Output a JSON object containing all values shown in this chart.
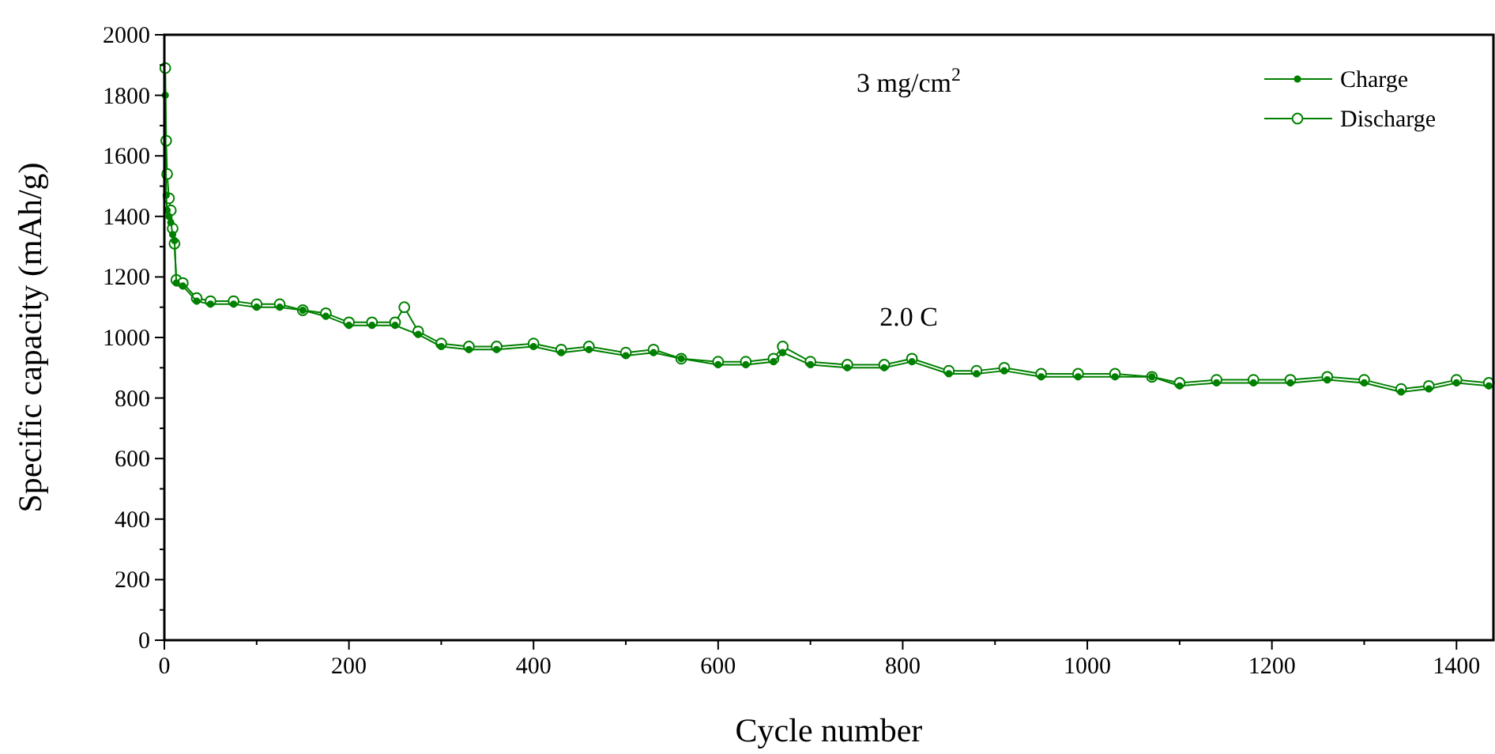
{
  "chart_data": {
    "type": "line",
    "xlabel": "Cycle number",
    "ylabel": "Specific capacity (mAh/g)",
    "annotations": [
      "3 mg/cm$^{2}$",
      "2.0 C"
    ],
    "xlim": [
      0,
      1440
    ],
    "ylim": [
      0,
      2000
    ],
    "xticks": [
      0,
      200,
      400,
      600,
      800,
      1000,
      1200,
      1400
    ],
    "yticks": [
      0,
      200,
      400,
      600,
      800,
      1000,
      1200,
      1400,
      1600,
      1800,
      2000
    ],
    "grid": false,
    "legend": "top right",
    "marker": "circle",
    "line_style": "solid",
    "series": [
      {
        "name": "Charge",
        "color": "#008000",
        "x": [
          1,
          2,
          3,
          5,
          7,
          9,
          11,
          13,
          20,
          35,
          50,
          75,
          100,
          125,
          150,
          175,
          200,
          225,
          250,
          275,
          300,
          330,
          360,
          400,
          430,
          460,
          500,
          530,
          560,
          600,
          630,
          660,
          670,
          700,
          740,
          780,
          810,
          850,
          880,
          910,
          950,
          990,
          1030,
          1070,
          1100,
          1140,
          1180,
          1220,
          1260,
          1300,
          1340,
          1370,
          1400,
          1435
        ],
        "values": [
          1800,
          1470,
          1420,
          1400,
          1380,
          1340,
          1320,
          1180,
          1170,
          1120,
          1110,
          1110,
          1100,
          1100,
          1090,
          1070,
          1040,
          1040,
          1040,
          1010,
          970,
          960,
          960,
          970,
          950,
          960,
          940,
          950,
          930,
          910,
          910,
          920,
          950,
          910,
          900,
          900,
          920,
          880,
          880,
          890,
          870,
          870,
          870,
          870,
          840,
          850,
          850,
          850,
          860,
          850,
          820,
          830,
          850,
          840
        ]
      },
      {
        "name": "Discharge",
        "color": "#008000",
        "x": [
          1,
          2,
          3,
          5,
          7,
          9,
          11,
          13,
          20,
          35,
          50,
          75,
          100,
          125,
          150,
          175,
          200,
          225,
          250,
          260,
          275,
          300,
          330,
          360,
          400,
          430,
          460,
          500,
          530,
          560,
          600,
          630,
          660,
          670,
          700,
          740,
          780,
          810,
          850,
          880,
          910,
          950,
          990,
          1030,
          1070,
          1100,
          1140,
          1180,
          1220,
          1260,
          1300,
          1340,
          1370,
          1400,
          1435
        ],
        "values": [
          1890,
          1650,
          1540,
          1460,
          1420,
          1360,
          1310,
          1190,
          1180,
          1130,
          1120,
          1120,
          1110,
          1110,
          1090,
          1080,
          1050,
          1050,
          1050,
          1100,
          1020,
          980,
          970,
          970,
          980,
          960,
          970,
          950,
          960,
          930,
          920,
          920,
          930,
          970,
          920,
          910,
          910,
          930,
          890,
          890,
          900,
          880,
          880,
          880,
          870,
          850,
          860,
          860,
          860,
          870,
          860,
          830,
          840,
          860,
          850
        ]
      }
    ]
  }
}
